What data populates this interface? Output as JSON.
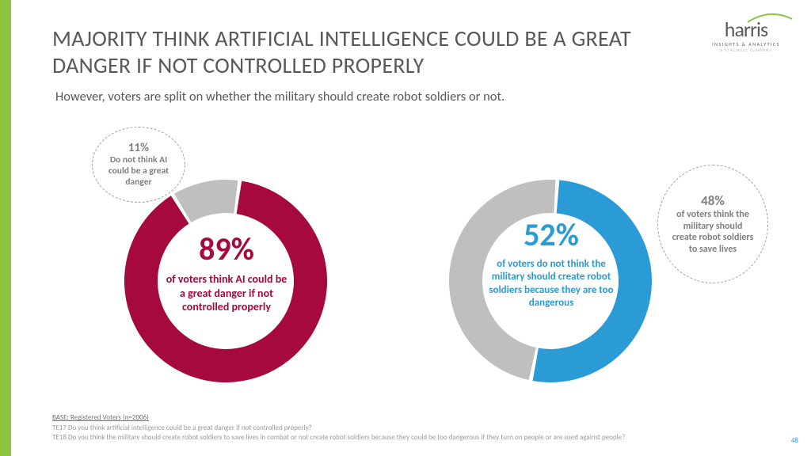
{
  "colors": {
    "green_bar": "#8bc53f",
    "title_text": "#595959",
    "gray_slice": "#bfbfbf",
    "bubble_text": "#7f7f7f",
    "footer_text": "#9a9a9a",
    "page_num": "#2b9bd6"
  },
  "logo": {
    "name": "harris",
    "sub1": "INSIGHTS & ANALYTICS",
    "sub2": "A STAGWELL COMPANY",
    "arc_color": "#8bc53f"
  },
  "title": "MAJORITY THINK ARTIFICIAL INTELLIGENCE COULD BE A GREAT DANGER IF NOT CONTROLLED PROPERLY",
  "subtitle": "However, voters are split on whether the military should create robot soldiers or not.",
  "chart_left": {
    "type": "donut",
    "primary_pct": 89,
    "secondary_pct": 11,
    "primary_color": "#a5093e",
    "secondary_color": "#bfbfbf",
    "ring_thickness": 42,
    "outer_radius": 128,
    "start_angle_deg": -82,
    "center_pct_label": "89%",
    "center_text": "of voters think AI could be a great danger if not controlled properly",
    "bubble_pct_label": "11%",
    "bubble_text": "Do not think AI could be a great danger",
    "bubble_pos": "top-left"
  },
  "chart_right": {
    "type": "donut",
    "primary_pct": 52,
    "secondary_pct": 48,
    "primary_color": "#2b9bd6",
    "secondary_color": "#bfbfbf",
    "ring_thickness": 42,
    "outer_radius": 128,
    "start_angle_deg": -86,
    "center_pct_label": "52%",
    "center_text": "of voters do not think the military should create robot soldiers because they are too dangerous",
    "bubble_pct_label": "48%",
    "bubble_text": "of voters think the military should create robot soldiers to save lives",
    "bubble_pos": "top-right"
  },
  "footer": {
    "base": "BASE: Registered Voters (n=2006)",
    "q1": "TE17 Do you think artificial intelligence could be a great danger if not controlled properly?",
    "q2": "TE18 Do you think the military should create robot soldiers to save lives in combat or not create robot soldiers because they could be too dangerous if they turn on people or are used against people?"
  },
  "page_number": "48"
}
